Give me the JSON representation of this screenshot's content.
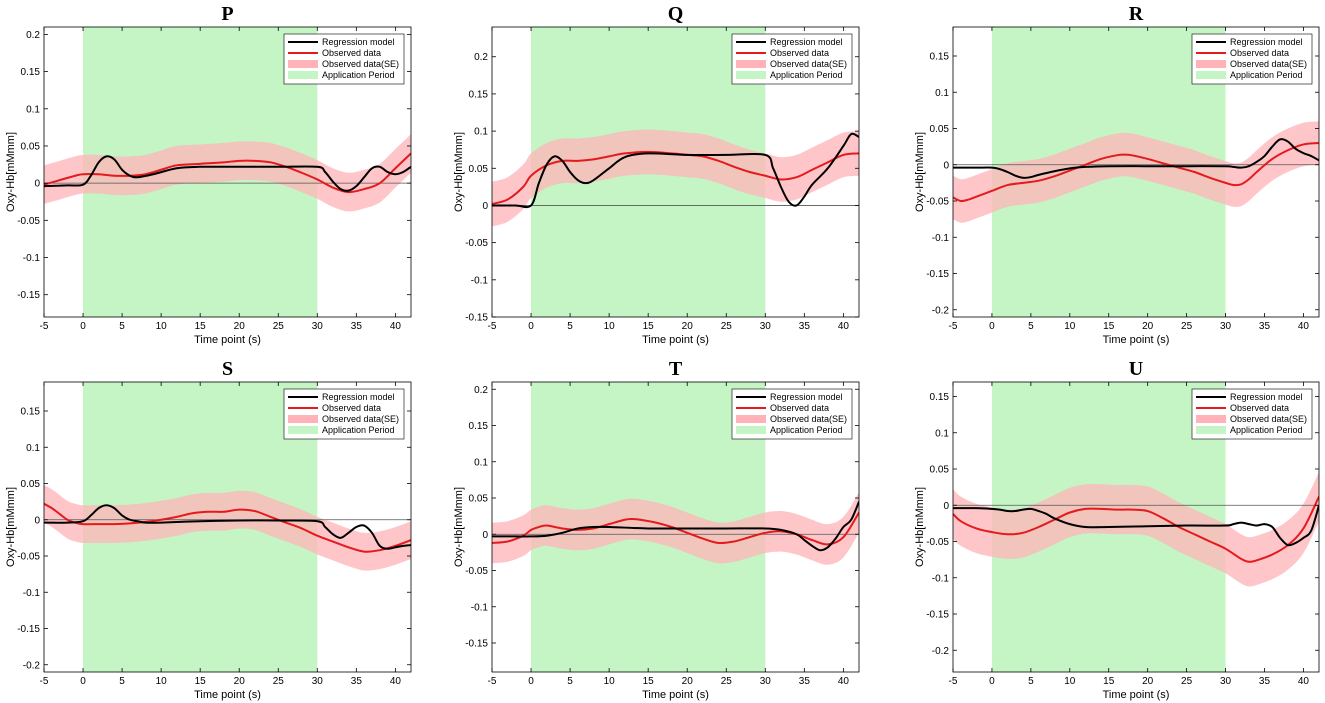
{
  "figure": {
    "legend_labels": [
      "Regression model",
      "Observed data",
      "Observed data(SE)",
      "Application Period"
    ],
    "colors": {
      "regression": "#000000",
      "observed": "#e41a1c",
      "se_band": "#ffb3b8",
      "application_period": "#c5f5c5",
      "zero_line": "#555555"
    }
  },
  "chart_data": [
    {
      "type": "line",
      "title": "P",
      "xlabel": "Time point (s)",
      "ylabel": "Oxy-Hb[mMmm]",
      "xlim": [
        -5,
        42
      ],
      "ylim": [
        -0.18,
        0.21
      ],
      "xticks": [
        -5,
        0,
        5,
        10,
        15,
        20,
        25,
        30,
        35,
        40
      ],
      "yticks": [
        -0.15,
        -0.1,
        -0.05,
        0,
        0.05,
        0.1,
        0.15,
        0.2
      ],
      "ytick_labels": [
        "-0.15",
        "-0.1",
        "-0.05",
        "0",
        "0.05",
        "0.1",
        "0.15",
        "0.2"
      ],
      "application_period": [
        0,
        30
      ],
      "se_halfwidth": 0.026,
      "series": [
        {
          "name": "Regression model",
          "x": [
            -5,
            -2,
            0,
            1,
            2,
            3,
            4,
            5,
            6,
            7,
            9,
            12,
            15,
            20,
            25,
            30,
            31,
            32,
            33,
            34,
            35,
            36,
            37,
            38,
            39,
            40,
            41,
            42
          ],
          "y": [
            -0.004,
            -0.003,
            -0.002,
            0.01,
            0.028,
            0.036,
            0.032,
            0.018,
            0.01,
            0.008,
            0.012,
            0.02,
            0.022,
            0.022,
            0.022,
            0.022,
            0.015,
            0.002,
            -0.008,
            -0.01,
            -0.004,
            0.008,
            0.02,
            0.022,
            0.015,
            0.012,
            0.015,
            0.022
          ]
        },
        {
          "name": "Observed data",
          "x": [
            -5,
            -3,
            -1,
            0,
            2,
            4,
            6,
            8,
            10,
            12,
            15,
            18,
            20,
            22,
            24,
            26,
            28,
            30,
            32,
            34,
            36,
            38,
            40,
            42
          ],
          "y": [
            -0.002,
            0.004,
            0.01,
            0.012,
            0.012,
            0.01,
            0.01,
            0.012,
            0.018,
            0.024,
            0.026,
            0.028,
            0.03,
            0.03,
            0.028,
            0.022,
            0.014,
            0.005,
            -0.006,
            -0.012,
            -0.008,
            0.0,
            0.02,
            0.04
          ]
        }
      ]
    },
    {
      "type": "line",
      "title": "Q",
      "xlabel": "Time point (s)",
      "ylabel": "Oxy-Hb[mMmm]",
      "xlim": [
        -5,
        42
      ],
      "ylim": [
        -0.15,
        0.24
      ],
      "xticks": [
        -5,
        0,
        5,
        10,
        15,
        20,
        25,
        30,
        35,
        40
      ],
      "yticks": [
        -0.15,
        -0.1,
        -0.05,
        0,
        0.05,
        0.1,
        0.15,
        0.2
      ],
      "ytick_labels": [
        "-0.15",
        "-0.1",
        "-0.05",
        "0",
        "0.05",
        "0.1",
        "0.15",
        "0.2"
      ],
      "application_period": [
        0,
        30
      ],
      "se_halfwidth": 0.03,
      "series": [
        {
          "name": "Regression model",
          "x": [
            -5,
            -2,
            0,
            1,
            2,
            3,
            4,
            5,
            6,
            7,
            8,
            10,
            12,
            15,
            20,
            25,
            30,
            31,
            32,
            33,
            34,
            35,
            36,
            38,
            40,
            41,
            42
          ],
          "y": [
            0.0,
            0.0,
            0.0,
            0.03,
            0.055,
            0.066,
            0.06,
            0.045,
            0.034,
            0.03,
            0.034,
            0.05,
            0.065,
            0.07,
            0.068,
            0.068,
            0.068,
            0.05,
            0.025,
            0.005,
            0.0,
            0.012,
            0.028,
            0.05,
            0.08,
            0.096,
            0.092
          ]
        },
        {
          "name": "Observed data",
          "x": [
            -5,
            -3,
            -1,
            0,
            2,
            4,
            6,
            8,
            10,
            12,
            15,
            18,
            20,
            22,
            24,
            26,
            28,
            30,
            32,
            34,
            36,
            38,
            40,
            42
          ],
          "y": [
            0.002,
            0.008,
            0.025,
            0.04,
            0.054,
            0.06,
            0.06,
            0.062,
            0.066,
            0.07,
            0.072,
            0.07,
            0.068,
            0.066,
            0.06,
            0.052,
            0.045,
            0.04,
            0.035,
            0.038,
            0.048,
            0.058,
            0.068,
            0.07
          ]
        }
      ]
    },
    {
      "type": "line",
      "title": "R",
      "xlabel": "Time point (s)",
      "ylabel": "Oxy-Hb[mMmm]",
      "xlim": [
        -5,
        42
      ],
      "ylim": [
        -0.21,
        0.19
      ],
      "xticks": [
        -5,
        0,
        5,
        10,
        15,
        20,
        25,
        30,
        35,
        40
      ],
      "yticks": [
        -0.2,
        -0.15,
        -0.1,
        -0.05,
        0,
        0.05,
        0.1,
        0.15
      ],
      "ytick_labels": [
        "-0.2",
        "-0.15",
        "-0.1",
        "-0.05",
        "0",
        "0.05",
        "0.1",
        "0.15"
      ],
      "application_period": [
        0,
        30
      ],
      "se_halfwidth": 0.03,
      "series": [
        {
          "name": "Regression model",
          "x": [
            -5,
            -2,
            0,
            1,
            2,
            3,
            4,
            5,
            6,
            8,
            10,
            12,
            15,
            20,
            25,
            30,
            31,
            32,
            33,
            34,
            35,
            36,
            37,
            38,
            39,
            40,
            41,
            42
          ],
          "y": [
            -0.004,
            -0.004,
            -0.004,
            -0.006,
            -0.01,
            -0.015,
            -0.018,
            -0.017,
            -0.014,
            -0.009,
            -0.005,
            -0.003,
            -0.002,
            -0.002,
            -0.002,
            -0.002,
            -0.003,
            -0.004,
            -0.002,
            0.004,
            0.012,
            0.025,
            0.035,
            0.032,
            0.022,
            0.016,
            0.012,
            0.006
          ]
        },
        {
          "name": "Observed data",
          "x": [
            -5,
            -4,
            -3,
            -2,
            0,
            2,
            4,
            6,
            8,
            10,
            12,
            14,
            16,
            17,
            18,
            20,
            22,
            24,
            26,
            28,
            30,
            31,
            32,
            33,
            34,
            36,
            38,
            40,
            42
          ],
          "y": [
            -0.045,
            -0.05,
            -0.048,
            -0.044,
            -0.036,
            -0.028,
            -0.025,
            -0.022,
            -0.016,
            -0.008,
            0.0,
            0.008,
            0.013,
            0.014,
            0.013,
            0.008,
            0.002,
            -0.004,
            -0.01,
            -0.018,
            -0.025,
            -0.028,
            -0.027,
            -0.02,
            -0.01,
            0.008,
            0.02,
            0.028,
            0.03
          ]
        }
      ]
    },
    {
      "type": "line",
      "title": "S",
      "xlabel": "Time point (s)",
      "ylabel": "Oxy-Hb[mMmm]",
      "xlim": [
        -5,
        42
      ],
      "ylim": [
        -0.21,
        0.19
      ],
      "xticks": [
        -5,
        0,
        5,
        10,
        15,
        20,
        25,
        30,
        35,
        40
      ],
      "yticks": [
        -0.2,
        -0.15,
        -0.1,
        -0.05,
        0,
        0.05,
        0.1,
        0.15
      ],
      "ytick_labels": [
        "-0.2",
        "-0.15",
        "-0.1",
        "-0.05",
        "0",
        "0.05",
        "0.1",
        "0.15"
      ],
      "application_period": [
        0,
        30
      ],
      "se_halfwidth": 0.026,
      "series": [
        {
          "name": "Regression model",
          "x": [
            -5,
            -2,
            0,
            1,
            2,
            3,
            4,
            5,
            6,
            7,
            8,
            10,
            15,
            20,
            25,
            30,
            31,
            32,
            33,
            34,
            35,
            36,
            37,
            38,
            39,
            40,
            41,
            42
          ],
          "y": [
            -0.004,
            -0.004,
            -0.002,
            0.006,
            0.016,
            0.02,
            0.016,
            0.006,
            0.0,
            -0.002,
            -0.004,
            -0.004,
            -0.002,
            -0.001,
            -0.001,
            -0.002,
            -0.01,
            -0.02,
            -0.025,
            -0.018,
            -0.01,
            -0.008,
            -0.018,
            -0.036,
            -0.04,
            -0.038,
            -0.036,
            -0.035
          ]
        },
        {
          "name": "Observed data",
          "x": [
            -5,
            -4,
            -3,
            -2,
            -1,
            0,
            2,
            4,
            6,
            8,
            10,
            12,
            14,
            16,
            18,
            20,
            22,
            24,
            26,
            28,
            30,
            32,
            34,
            36,
            38,
            40,
            42
          ],
          "y": [
            0.022,
            0.016,
            0.008,
            0.0,
            -0.004,
            -0.006,
            -0.006,
            -0.006,
            -0.005,
            -0.003,
            0.0,
            0.004,
            0.009,
            0.011,
            0.011,
            0.014,
            0.012,
            0.004,
            -0.004,
            -0.012,
            -0.022,
            -0.03,
            -0.038,
            -0.044,
            -0.042,
            -0.036,
            -0.028
          ]
        }
      ]
    },
    {
      "type": "line",
      "title": "T",
      "xlabel": "Time point (s)",
      "ylabel": "Oxy-Hb[mMmm]",
      "xlim": [
        -5,
        42
      ],
      "ylim": [
        -0.19,
        0.21
      ],
      "xticks": [
        -5,
        0,
        5,
        10,
        15,
        20,
        25,
        30,
        35,
        40
      ],
      "yticks": [
        -0.15,
        -0.1,
        -0.05,
        0,
        0.05,
        0.1,
        0.15,
        0.2
      ],
      "ytick_labels": [
        "-0.15",
        "-0.1",
        "-0.05",
        "0",
        "0.05",
        "0.1",
        "0.15",
        "0.2"
      ],
      "application_period": [
        0,
        30
      ],
      "se_halfwidth": 0.028,
      "series": [
        {
          "name": "Regression model",
          "x": [
            -5,
            -2,
            0,
            2,
            4,
            6,
            8,
            10,
            15,
            20,
            25,
            30,
            32,
            34,
            35,
            36,
            37,
            38,
            39,
            40,
            41,
            42
          ],
          "y": [
            -0.003,
            -0.003,
            -0.003,
            -0.002,
            0.002,
            0.008,
            0.01,
            0.01,
            0.008,
            0.008,
            0.008,
            0.008,
            0.006,
            0.0,
            -0.008,
            -0.016,
            -0.022,
            -0.018,
            -0.006,
            0.01,
            0.02,
            0.045
          ]
        },
        {
          "name": "Observed data",
          "x": [
            -5,
            -3,
            -1,
            0,
            1,
            2,
            4,
            6,
            8,
            10,
            12,
            13,
            14,
            16,
            18,
            20,
            22,
            24,
            26,
            28,
            30,
            32,
            34,
            36,
            38,
            40,
            42
          ],
          "y": [
            -0.012,
            -0.01,
            -0.002,
            0.006,
            0.01,
            0.012,
            0.008,
            0.006,
            0.008,
            0.014,
            0.02,
            0.021,
            0.02,
            0.016,
            0.01,
            0.002,
            -0.006,
            -0.012,
            -0.01,
            -0.004,
            0.002,
            0.004,
            0.0,
            -0.008,
            -0.014,
            -0.004,
            0.03
          ]
        }
      ]
    },
    {
      "type": "line",
      "title": "U",
      "xlabel": "Time point (s)",
      "ylabel": "Oxy-Hb[mMmm]",
      "xlim": [
        -5,
        42
      ],
      "ylim": [
        -0.23,
        0.17
      ],
      "xticks": [
        -5,
        0,
        5,
        10,
        15,
        20,
        25,
        30,
        35,
        40
      ],
      "yticks": [
        -0.2,
        -0.15,
        -0.1,
        -0.05,
        0,
        0.05,
        0.1,
        0.15
      ],
      "ytick_labels": [
        "-0.2",
        "-0.15",
        "-0.1",
        "-0.05",
        "0",
        "0.05",
        "0.1",
        "0.15"
      ],
      "application_period": [
        0,
        30
      ],
      "se_halfwidth": 0.034,
      "series": [
        {
          "name": "Regression model",
          "x": [
            -5,
            -2,
            0,
            1,
            2,
            3,
            4,
            5,
            6,
            7,
            8,
            10,
            12,
            15,
            20,
            25,
            30,
            31,
            32,
            33,
            34,
            35,
            36,
            37,
            38,
            39,
            40,
            41,
            42
          ],
          "y": [
            -0.004,
            -0.004,
            -0.005,
            -0.006,
            -0.008,
            -0.008,
            -0.006,
            -0.005,
            -0.008,
            -0.012,
            -0.018,
            -0.026,
            -0.03,
            -0.03,
            -0.029,
            -0.028,
            -0.028,
            -0.026,
            -0.024,
            -0.026,
            -0.028,
            -0.026,
            -0.03,
            -0.045,
            -0.055,
            -0.052,
            -0.045,
            -0.035,
            0.0
          ]
        },
        {
          "name": "Observed data",
          "x": [
            -5,
            -4,
            -2,
            0,
            2,
            4,
            6,
            8,
            10,
            12,
            14,
            16,
            18,
            20,
            22,
            24,
            26,
            28,
            30,
            32,
            33,
            34,
            36,
            38,
            40,
            42
          ],
          "y": [
            -0.012,
            -0.022,
            -0.032,
            -0.037,
            -0.04,
            -0.038,
            -0.03,
            -0.02,
            -0.01,
            -0.005,
            -0.005,
            -0.006,
            -0.006,
            -0.008,
            -0.018,
            -0.03,
            -0.04,
            -0.05,
            -0.06,
            -0.074,
            -0.078,
            -0.076,
            -0.068,
            -0.055,
            -0.032,
            0.012
          ]
        }
      ]
    }
  ]
}
